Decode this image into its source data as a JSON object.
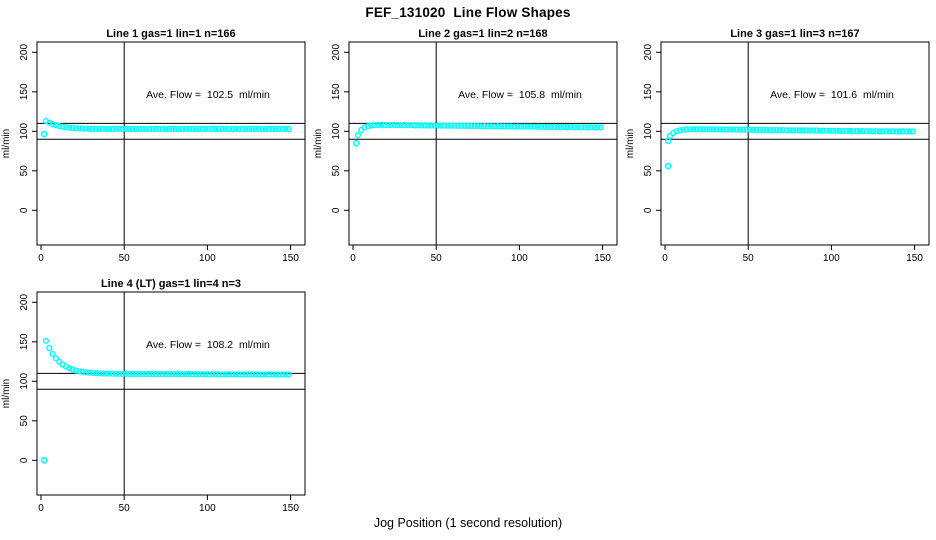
{
  "chart_data": {
    "type": "scatter",
    "title": "FEF_131020  Line Flow Shapes",
    "xlabel": "Jog Position (1 second resolution)",
    "ylabel": "ml/min",
    "x_ticks": [
      0,
      50,
      100,
      150
    ],
    "y_ticks": [
      0,
      50,
      100,
      150,
      200
    ],
    "xlim": [
      -3,
      160
    ],
    "ylim": [
      -45,
      214
    ],
    "grid": false,
    "legend": "none",
    "point_color": "#00FFFF",
    "line_color": "#000000",
    "reference_lines": {
      "horizontal": [
        90,
        110
      ],
      "vertical": [
        50
      ]
    },
    "panels": [
      {
        "title": "Line 1 gas=1 lin=1 n=166",
        "ave_flow_label": "Ave. Flow =  102.5  ml/min",
        "ave_flow_value": 102.5,
        "n": 166,
        "series": {
          "x_start": 3,
          "x_step": 2,
          "y": [
            113,
            110.8,
            109.1,
            107.7,
            106.6,
            105.8,
            105.1,
            104.6,
            104.2,
            103.9,
            103.7,
            103.5,
            103.3,
            103.2,
            103.1,
            103.1,
            103,
            103,
            102.9,
            103.1,
            102.8,
            103,
            103.2,
            102.9,
            103,
            102.8,
            103.1,
            102.9,
            103,
            103.1,
            102.8,
            103,
            102.9,
            103.1,
            103,
            102.8,
            102.9,
            103,
            103.1,
            102.9,
            102.8,
            103,
            102.9,
            103.1,
            103,
            102.9,
            102.8,
            103,
            103.1,
            102.9,
            103,
            102.8,
            102.9,
            103.1,
            103,
            102.9,
            102.8,
            103,
            102.9,
            103.1,
            102.8,
            103,
            102.9,
            103,
            103.1,
            102.8,
            102.9,
            103,
            103,
            102.9,
            103.1,
            102.8,
            103,
            102.9
          ]
        },
        "outliers": [
          [
            2,
            96.5
          ]
        ]
      },
      {
        "title": "Line 2 gas=1 lin=2 n=168",
        "ave_flow_label": "Ave. Flow =  105.8  ml/min",
        "ave_flow_value": 105.8,
        "n": 168,
        "series": {
          "x_start": 3,
          "x_step": 2,
          "y": [
            95,
            101.6,
            104.9,
            106.5,
            107.3,
            107.7,
            107.9,
            108,
            107.9,
            108,
            107.9,
            107.8,
            107.9,
            107.7,
            107.8,
            107.6,
            107.7,
            107.5,
            107.6,
            107.4,
            107.5,
            107.3,
            107.4,
            107.2,
            107.3,
            107.1,
            107.2,
            107,
            107.1,
            106.9,
            107,
            106.8,
            106.9,
            106.7,
            106.8,
            106.6,
            106.7,
            106.5,
            106.6,
            106.4,
            106.5,
            106.3,
            106.4,
            106.2,
            106.3,
            106.1,
            106.2,
            106,
            106.1,
            105.9,
            106,
            105.8,
            105.9,
            105.7,
            105.8,
            105.6,
            105.7,
            105.5,
            105.6,
            105.4,
            105.5,
            105.3,
            105.4,
            105.2,
            105.3,
            105.1,
            105.2,
            105,
            105.1,
            105,
            105.1,
            104.9,
            105,
            104.9
          ]
        },
        "outliers": [
          [
            2,
            85
          ]
        ]
      },
      {
        "title": "Line 3 gas=1 lin=3 n=167",
        "ave_flow_label": "Ave. Flow =  101.6  ml/min",
        "ave_flow_value": 101.6,
        "n": 167,
        "series": {
          "x_start": 3,
          "x_step": 2,
          "y": [
            94,
            97.8,
            100,
            101.2,
            101.9,
            102.3,
            102.5,
            102.6,
            102.7,
            102.6,
            102.7,
            102.5,
            102.6,
            102.4,
            102.5,
            102.3,
            102.4,
            102.2,
            102.3,
            102.1,
            102.2,
            102,
            102.1,
            101.9,
            102,
            101.8,
            101.9,
            101.7,
            101.8,
            101.6,
            101.7,
            101.5,
            101.6,
            101.4,
            101.5,
            101.3,
            101.4,
            101.2,
            101.3,
            101.1,
            101.2,
            101,
            101.1,
            100.9,
            101,
            100.8,
            100.9,
            100.7,
            100.8,
            100.6,
            100.7,
            100.5,
            100.6,
            100.4,
            100.5,
            100.3,
            100.4,
            100.2,
            100.3,
            100.1,
            100.2,
            100,
            100.1,
            99.9,
            100,
            100.1,
            99.9,
            100,
            99.8,
            99.9,
            100,
            99.8,
            99.9,
            99.8
          ]
        },
        "outliers": [
          [
            2,
            88
          ],
          [
            2,
            56
          ]
        ]
      },
      {
        "title": "Line 4 (LT) gas=1 lin=4 n=3",
        "ave_flow_label": "Ave. Flow =  108.2  ml/min",
        "ave_flow_value": 108.2,
        "n": 3,
        "series": {
          "x_start": 3,
          "x_step": 2,
          "y": [
            151.3,
            142,
            134.7,
            129.1,
            124.7,
            121.3,
            118.7,
            116.6,
            115,
            113.7,
            112.7,
            112,
            111.4,
            110.9,
            110.6,
            110.3,
            110.1,
            109.9,
            109.8,
            109.7,
            109.6,
            109.5,
            109.5,
            109.4,
            109.5,
            109.3,
            109.4,
            109.3,
            109.4,
            109.2,
            109.3,
            109.4,
            109.2,
            109.3,
            109.2,
            109.3,
            109.1,
            109.2,
            109.3,
            109.1,
            109.2,
            109,
            109.1,
            109.2,
            109,
            109.1,
            109,
            109.1,
            108.9,
            109,
            109.1,
            108.9,
            109,
            108.8,
            108.9,
            109,
            108.8,
            108.9,
            108.8,
            108.9,
            108.7,
            108.8,
            108.9,
            108.7,
            108.8,
            108.6,
            108.7,
            108.8,
            108.6,
            108.7,
            108.5,
            108.6,
            108.7,
            108.5
          ]
        },
        "outliers": [
          [
            2,
            0
          ]
        ]
      }
    ]
  }
}
